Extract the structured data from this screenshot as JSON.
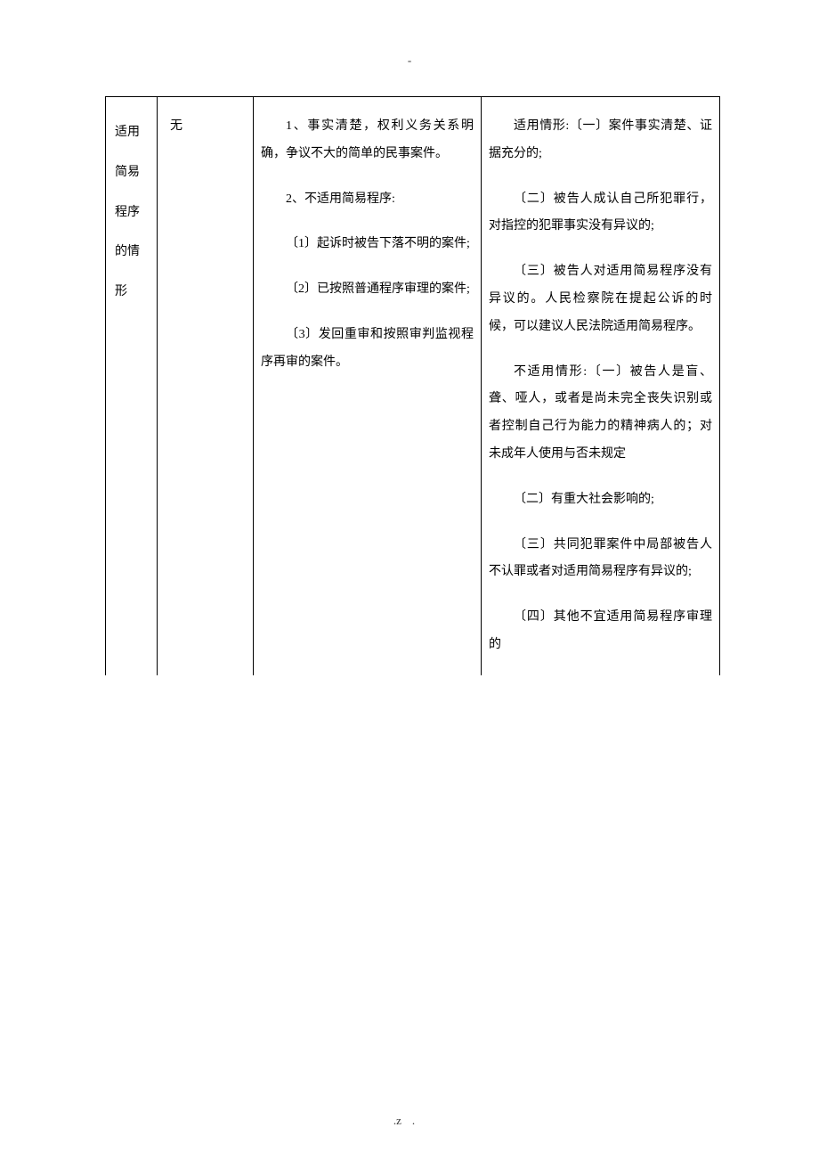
{
  "header_mark": "-",
  "footer_left": ".",
  "footer_right": "z.",
  "table": {
    "row": {
      "col1": "适用简易程序的情形",
      "col2": "无",
      "col3": {
        "p1": "1、事实清楚，权利义务关系明确，争议不大的简单的民事案件。",
        "p2": "2、不适用简易程序:",
        "p3": "〔1〕起诉时被告下落不明的案件;",
        "p4": "〔2〕已按照普通程序审理的案件;",
        "p5": "〔3〕发回重审和按照审判监视程序再审的案件。"
      },
      "col4": {
        "p1": "适用情形:〔一〕案件事实清楚、证据充分的;",
        "p2": "〔二〕被告人成认自己所犯罪行，对指控的犯罪事实没有异议的;",
        "p3": "〔三〕被告人对适用简易程序没有异议的。人民检察院在提起公诉的时候，可以建议人民法院适用简易程序。",
        "p4": "不适用情形:〔一〕被告人是盲、聋、哑人，或者是尚未完全丧失识别或者控制自己行为能力的精神病人的；对未成年人使用与否未规定",
        "p5": "〔二〕有重大社会影响的;",
        "p6": "〔三〕共同犯罪案件中局部被告人不认罪或者对适用简易程序有异议的;",
        "p7": "〔四〕其他不宜适用简易程序审理的"
      }
    }
  }
}
